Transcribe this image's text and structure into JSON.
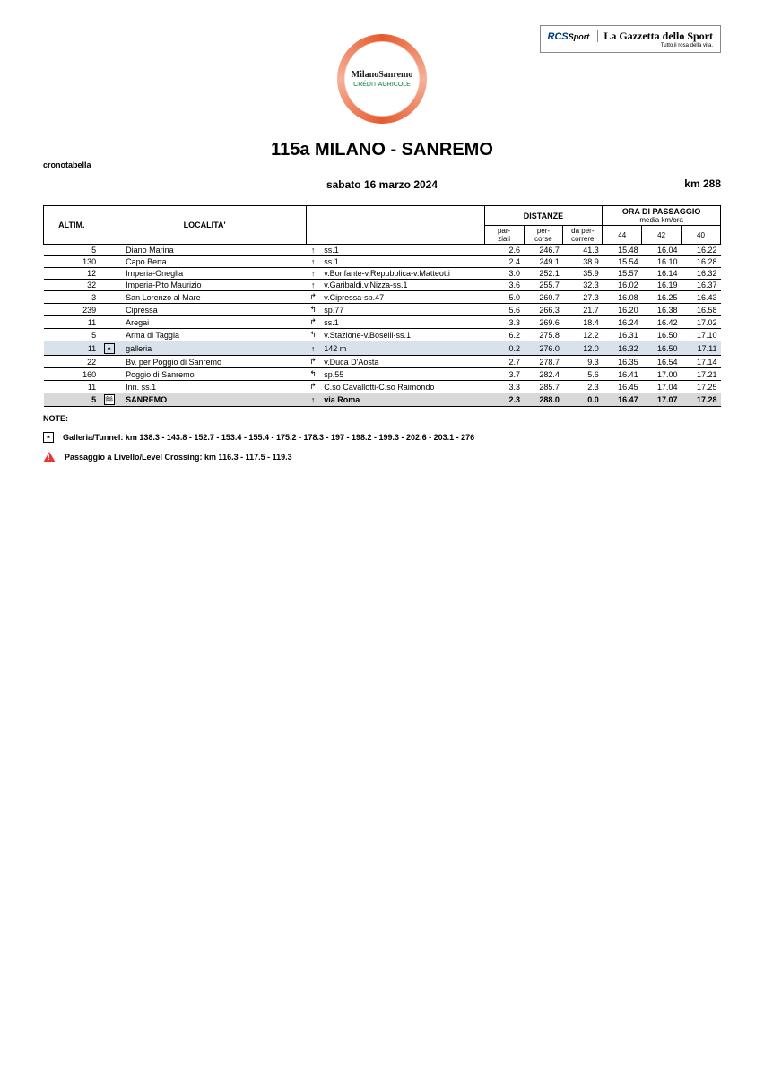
{
  "sponsor": {
    "rcs": "RCS",
    "sport": "Sport",
    "gazzetta": "La Gazzetta dello Sport",
    "tagline": "Tutto il rosa della vita."
  },
  "logo": {
    "main": "MilanoSanremo",
    "sub": "CRÉDIT AGRICOLE"
  },
  "title": "115a  MILANO - SANREMO",
  "km_label": "km 288",
  "cronotabella": "cronotabella",
  "date": "sabato 16 marzo 2024",
  "headers": {
    "altim": "ALTIM.",
    "localita": "LOCALITA'",
    "distanze": "DISTANZE",
    "ora": "ORA DI PASSAGGIO",
    "media": "media km/ora",
    "parziali": "par-\nziali",
    "percorse": "per-\ncorse",
    "dapercorrere": "da per-\ncorrere",
    "s44": "44",
    "s42": "42",
    "s40": "40"
  },
  "rows": [
    {
      "icon": "",
      "alt": "5",
      "loc": "Diano Marina",
      "dir": "↑",
      "road": "ss.1",
      "parz": "2.6",
      "perc": "246.7",
      "daperc": "41.3",
      "t44": "15.48",
      "t42": "16.04",
      "t40": "16.22",
      "hl": ""
    },
    {
      "icon": "",
      "alt": "130",
      "loc": "Capo Berta",
      "dir": "↑",
      "road": "ss.1",
      "parz": "2.4",
      "perc": "249.1",
      "daperc": "38.9",
      "t44": "15.54",
      "t42": "16.10",
      "t40": "16.28",
      "hl": ""
    },
    {
      "icon": "",
      "alt": "12",
      "loc": "Imperia-Oneglia",
      "dir": "↑",
      "road": "v.Bonfante-v.Repubblica-v.Matteotti",
      "parz": "3.0",
      "perc": "252.1",
      "daperc": "35.9",
      "t44": "15.57",
      "t42": "16.14",
      "t40": "16.32",
      "hl": ""
    },
    {
      "icon": "",
      "alt": "32",
      "loc": "Imperia-P.to Maurizio",
      "dir": "↑",
      "road": "v.Garibaldi.v.Nizza-ss.1",
      "parz": "3.6",
      "perc": "255.7",
      "daperc": "32.3",
      "t44": "16.02",
      "t42": "16.19",
      "t40": "16.37",
      "hl": ""
    },
    {
      "icon": "",
      "alt": "3",
      "loc": "San Lorenzo al Mare",
      "dir": "↱",
      "road": "v.Cipressa-sp.47",
      "parz": "5.0",
      "perc": "260.7",
      "daperc": "27.3",
      "t44": "16.08",
      "t42": "16.25",
      "t40": "16.43",
      "hl": ""
    },
    {
      "icon": "",
      "alt": "239",
      "loc": "Cipressa",
      "dir": "↰",
      "road": "sp.77",
      "parz": "5.6",
      "perc": "266.3",
      "daperc": "21.7",
      "t44": "16.20",
      "t42": "16.38",
      "t40": "16.58",
      "hl": ""
    },
    {
      "icon": "",
      "alt": "11",
      "loc": "Aregai",
      "dir": "↱",
      "road": "ss.1",
      "parz": "3.3",
      "perc": "269.6",
      "daperc": "18.4",
      "t44": "16.24",
      "t42": "16.42",
      "t40": "17.02",
      "hl": ""
    },
    {
      "icon": "",
      "alt": "5",
      "loc": "Arma di Taggia",
      "dir": "↰",
      "road": "v.Stazione-v.Boselli-ss.1",
      "parz": "6.2",
      "perc": "275.8",
      "daperc": "12.2",
      "t44": "16.31",
      "t42": "16.50",
      "t40": "17.10",
      "hl": ""
    },
    {
      "icon": "tunnel",
      "alt": "11",
      "loc": "galleria",
      "dir": "↑",
      "road": "142 m",
      "parz": "0.2",
      "perc": "276.0",
      "daperc": "12.0",
      "t44": "16.32",
      "t42": "16.50",
      "t40": "17.11",
      "hl": "blue"
    },
    {
      "icon": "",
      "alt": "22",
      "loc": "Bv. per Poggio di Sanremo",
      "dir": "↱",
      "road": "v.Duca D'Aosta",
      "parz": "2.7",
      "perc": "278.7",
      "daperc": "9.3",
      "t44": "16.35",
      "t42": "16.54",
      "t40": "17.14",
      "hl": ""
    },
    {
      "icon": "",
      "alt": "160",
      "loc": "Poggio di Sanremo",
      "dir": "↰",
      "road": "sp.55",
      "parz": "3.7",
      "perc": "282.4",
      "daperc": "5.6",
      "t44": "16.41",
      "t42": "17.00",
      "t40": "17.21",
      "hl": ""
    },
    {
      "icon": "",
      "alt": "11",
      "loc": "Inn. ss.1",
      "dir": "↱",
      "road": "C.so Cavallotti-C.so Raimondo",
      "parz": "3.3",
      "perc": "285.7",
      "daperc": "2.3",
      "t44": "16.45",
      "t42": "17.04",
      "t40": "17.25",
      "hl": ""
    },
    {
      "icon": "finish",
      "alt": "5",
      "loc": "SANREMO",
      "dir": "↑",
      "road": "via Roma",
      "parz": "2.3",
      "perc": "288.0",
      "daperc": "0.0",
      "t44": "16.47",
      "t42": "17.07",
      "t40": "17.28",
      "hl": "grey"
    }
  ],
  "notes": {
    "title": "NOTE:",
    "tunnel": "Galleria/Tunnel:  km 138.3 - 143.8 - 152.7 - 153.4 - 155.4 - 175.2 - 178.3 - 197 - 198.2 - 199.3 - 202.6 - 203.1 - 276",
    "crossing": "Passaggio a Livello/Level Crossing:  km 116.3 - 117.5 - 119.3"
  }
}
